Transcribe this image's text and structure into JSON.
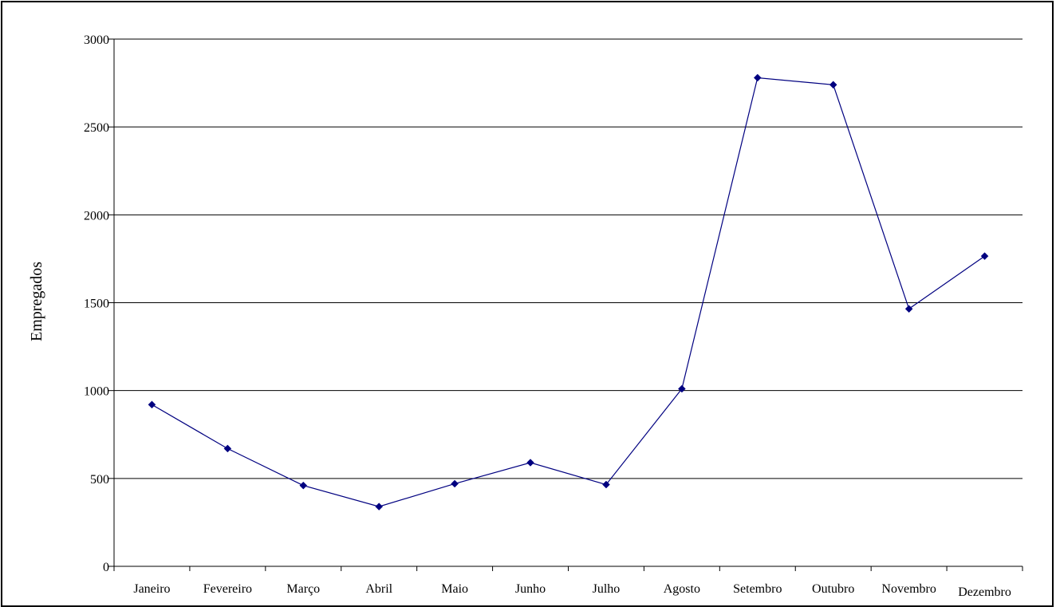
{
  "chart_data": {
    "type": "line",
    "title": "",
    "xlabel": "",
    "ylabel": "Empregados",
    "ylim": [
      0,
      3000
    ],
    "yticks": [
      0,
      500,
      1000,
      1500,
      2000,
      2500,
      3000
    ],
    "grid": "horizontal",
    "legend": "none",
    "categories": [
      "Janeiro",
      "Fevereiro",
      "Março",
      "Abril",
      "Maio",
      "Junho",
      "Julho",
      "Agosto",
      "Setembro",
      "Outubro",
      "Novembro",
      "Dezembro"
    ],
    "series": [
      {
        "values": [
          920,
          670,
          460,
          340,
          470,
          590,
          465,
          1010,
          2780,
          2740,
          1465,
          1765
        ],
        "color": "#000080",
        "marker": "diamond"
      }
    ]
  }
}
